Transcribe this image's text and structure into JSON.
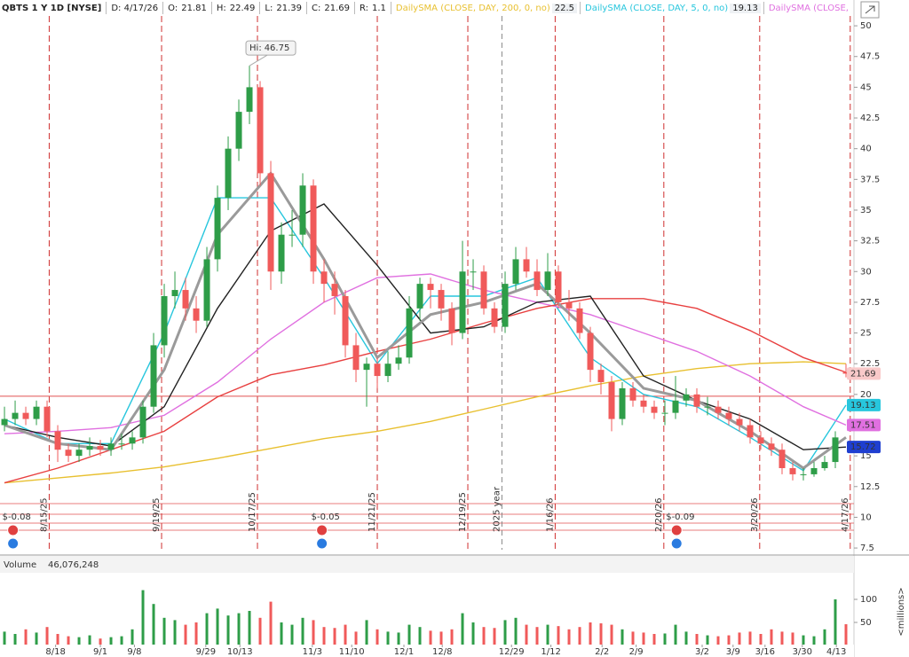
{
  "chart_data": {
    "type": "candlestick",
    "title": "QBTS 1 Y 1D [NYSE]",
    "date_label": "D: 4/17/26",
    "ohlc_labels": [
      "O:",
      "H:",
      "L:",
      "C:"
    ],
    "range_label": "R:",
    "range": 1.1,
    "hi_label": "Hi:",
    "open": [
      17.5,
      18,
      18.5,
      18,
      19,
      17,
      15.5,
      15,
      15.5,
      15.8,
      15.5,
      16,
      16,
      16.5,
      19,
      24,
      28,
      28.5,
      27,
      26,
      31,
      36,
      40,
      43,
      45,
      38,
      30,
      33,
      33,
      37,
      30,
      29,
      28,
      24,
      22,
      22.5,
      21.5,
      22.5,
      23,
      27,
      29,
      28.5,
      27,
      25,
      30,
      30,
      27,
      25.5,
      29,
      31,
      30,
      28.5,
      30,
      27.5,
      27,
      25,
      22,
      21,
      18,
      20.5,
      19.5,
      19,
      18.5,
      18.5,
      19.5,
      20,
      19,
      19,
      18.5,
      18,
      17.5,
      16.5,
      16,
      15.5,
      14,
      13.5,
      13.5,
      14,
      14.5,
      21.81
    ],
    "high": [
      19,
      19.5,
      19,
      19.5,
      19.5,
      17.5,
      16,
      16,
      16.5,
      16.3,
      16.5,
      16.8,
      17,
      19.5,
      25,
      29,
      30,
      29.5,
      28,
      32,
      37,
      41,
      44,
      46.75,
      45.5,
      39,
      34,
      35,
      38,
      37.5,
      31,
      30,
      28.5,
      25,
      23,
      23,
      23.5,
      24,
      28,
      29.5,
      29.5,
      29,
      27.5,
      32.5,
      31,
      30.5,
      27.5,
      30,
      32,
      32,
      31,
      31.5,
      30.5,
      28.5,
      27.5,
      25.5,
      22.5,
      21.5,
      21,
      21,
      20,
      19.5,
      19.5,
      21.5,
      20.5,
      20.5,
      19.8,
      19.5,
      19,
      18.5,
      18,
      17,
      16.5,
      16,
      14.5,
      14,
      14.5,
      15,
      17,
      22.49
    ],
    "low": [
      17,
      17.5,
      17.5,
      17.5,
      16.5,
      14.5,
      14.5,
      14.5,
      15,
      15,
      15,
      15.5,
      15.5,
      16,
      18.5,
      23,
      27,
      26,
      25,
      25.5,
      30,
      35,
      39,
      42,
      37,
      28.5,
      29,
      32,
      32,
      29,
      27.5,
      26.5,
      23,
      21,
      19,
      20.5,
      21,
      22,
      22.5,
      26,
      27,
      26,
      24,
      24.5,
      28.5,
      26.5,
      25,
      25,
      28.5,
      29.5,
      28,
      28,
      27,
      26,
      24.5,
      21,
      20,
      17,
      17.5,
      19,
      18.5,
      18,
      17.5,
      18,
      19,
      18.5,
      18.3,
      18,
      17.5,
      17,
      16,
      15.5,
      15,
      13.5,
      13,
      13,
      13.3,
      13.8,
      14,
      21.39
    ],
    "close": [
      18,
      18.5,
      18,
      19,
      17,
      15.5,
      15,
      15.5,
      15.8,
      15.5,
      16,
      16,
      16.5,
      19,
      24,
      28,
      28.5,
      27,
      26,
      31,
      36,
      40,
      43,
      45,
      38,
      30,
      33,
      33,
      37,
      30,
      29,
      28,
      24,
      22,
      22.5,
      21.5,
      22.5,
      23,
      27,
      29,
      28.5,
      27,
      25,
      30,
      30,
      27,
      25.5,
      29,
      31,
      30,
      28.5,
      30,
      27.5,
      27,
      25,
      22,
      21,
      18,
      20.5,
      19.5,
      19,
      18.5,
      18.5,
      19.5,
      20,
      19,
      19,
      18.5,
      18,
      17.5,
      16.5,
      16,
      15.5,
      14,
      13.5,
      13.5,
      14,
      14.5,
      16.5,
      21.69
    ],
    "up_color": "#2e9d48",
    "down_color": "#f05a5a",
    "xlim": [
      -0.42,
      79.75
    ],
    "xticks": [
      {
        "value": 4.8,
        "label": "8/18"
      },
      {
        "value": 9,
        "label": "9/1"
      },
      {
        "value": 12.2,
        "label": "9/8"
      },
      {
        "value": 18.9,
        "label": "9/29"
      },
      {
        "value": 22.1,
        "label": "10/13"
      },
      {
        "value": 28.9,
        "label": "11/3"
      },
      {
        "value": 32.6,
        "label": "11/10"
      },
      {
        "value": 37.5,
        "label": "12/1"
      },
      {
        "value": 41.1,
        "label": "12/8"
      },
      {
        "value": 47.6,
        "label": "12/29"
      },
      {
        "value": 51.3,
        "label": "1/12"
      },
      {
        "value": 56.1,
        "label": "2/2"
      },
      {
        "value": 59.3,
        "label": "2/9"
      },
      {
        "value": 65.5,
        "label": "3/2"
      },
      {
        "value": 68.4,
        "label": "3/9"
      },
      {
        "value": 71.4,
        "label": "3/16"
      },
      {
        "value": 74.9,
        "label": "3/30"
      },
      {
        "value": 78.1,
        "label": "4/13"
      }
    ],
    "ylim": [
      7,
      52.1
    ],
    "yticks": [
      7.5,
      10,
      12.5,
      15,
      17.5,
      20,
      22.5,
      25,
      27.5,
      30,
      32.5,
      35,
      37.5,
      40,
      42.5,
      45,
      47.5,
      50
    ],
    "sma_x": [
      0,
      5,
      10,
      15,
      20,
      25,
      30,
      35,
      40,
      45,
      50,
      55,
      60,
      65,
      70,
      75,
      79
    ],
    "series": [
      {
        "name": "DailySMA (CLOSE, DAY, 200, 0, no)",
        "color": "#e8c030",
        "values": [
          12.8,
          13.2,
          13.6,
          14.1,
          14.8,
          15.6,
          16.4,
          17.0,
          17.8,
          18.8,
          19.8,
          20.7,
          21.5,
          22.1,
          22.5,
          22.65,
          22.5
        ]
      },
      {
        "name": "DailySMA (CLOSE, DAY, 5, 0, no)",
        "color": "#27c6dd",
        "values": [
          18,
          16,
          16,
          25,
          36,
          36,
          29.5,
          22.5,
          28,
          28,
          29.5,
          23,
          20,
          19,
          16.5,
          13.8,
          19.13
        ]
      },
      {
        "name": "DailySMA (CLOSE, DAY,",
        "color": "#e070e0",
        "values": [
          16.8,
          17,
          17.3,
          18.3,
          21,
          24.5,
          27.5,
          29.5,
          29.8,
          28.5,
          27.5,
          26.5,
          25,
          23.5,
          21.5,
          19,
          17.51
        ]
      },
      {
        "color": "#e84040",
        "values": [
          12.8,
          14,
          15.5,
          17,
          19.8,
          21.6,
          22.4,
          23.5,
          24.5,
          25.8,
          27,
          27.8,
          27.8,
          27,
          25.2,
          23,
          21.8
        ]
      },
      {
        "color": "#222222",
        "values": [
          17.5,
          16.5,
          15.8,
          19,
          27,
          33.3,
          35.5,
          30.5,
          25,
          25.5,
          27.5,
          28,
          21.5,
          19.5,
          18,
          15.5,
          15.72
        ]
      },
      {
        "color": "#9a9a9a",
        "values": [
          17.5,
          16,
          15.5,
          22,
          33,
          38,
          31,
          23,
          26.5,
          27.5,
          29,
          25,
          20.5,
          19.5,
          17,
          14,
          16.5
        ]
      }
    ],
    "price_line": 19.85,
    "markers": [
      {
        "x": 4.2,
        "label": "8/15/25"
      },
      {
        "x": 14.75,
        "label": "9/19/25"
      },
      {
        "x": 23.75,
        "label": "10/17/25"
      },
      {
        "x": 35,
        "label": "11/21/25"
      },
      {
        "x": 43.5,
        "label": "12/19/25"
      },
      {
        "x": 51.7,
        "label": "1/16/26"
      },
      {
        "x": 61.9,
        "label": "2/20/26"
      },
      {
        "x": 70.9,
        "label": "3/20/26"
      },
      {
        "x": 79.4,
        "label": "4/17/26"
      }
    ],
    "year_marker": {
      "x": 46.7,
      "label": "2025 year"
    },
    "earnings": [
      {
        "x": -0.2,
        "label": "$-0.08"
      },
      {
        "x": 28.8,
        "label": "$-0.05"
      },
      {
        "x": 62.1,
        "label": "$-0.09"
      }
    ],
    "volume": {
      "name": "Volume",
      "last_label": "46,076,248",
      "unit_label": "<millions>",
      "ylim": [
        0,
        150
      ],
      "yticks": [
        50,
        100
      ],
      "values": [
        30,
        25,
        35,
        28,
        40,
        25,
        20,
        18,
        22,
        15,
        18,
        20,
        35,
        120,
        90,
        60,
        55,
        45,
        50,
        70,
        80,
        65,
        70,
        75,
        60,
        95,
        50,
        45,
        60,
        55,
        40,
        38,
        45,
        30,
        55,
        35,
        30,
        28,
        45,
        40,
        32,
        30,
        35,
        70,
        50,
        40,
        38,
        55,
        60,
        45,
        40,
        45,
        42,
        35,
        40,
        50,
        48,
        45,
        35,
        30,
        28,
        25,
        26,
        45,
        30,
        25,
        22,
        20,
        22,
        28,
        30,
        25,
        35,
        30,
        28,
        22,
        20,
        35,
        100,
        46.076248
      ]
    }
  }
}
